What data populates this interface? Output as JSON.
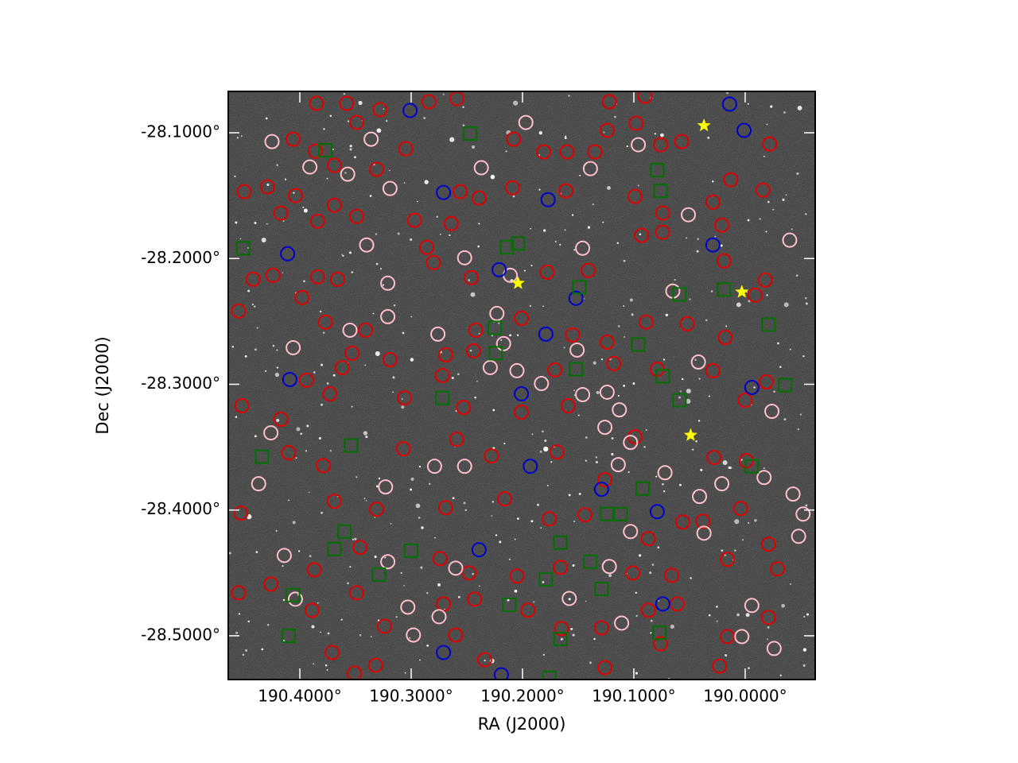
{
  "chart_data": {
    "type": "scatter",
    "xlabel": "RA (J2000)",
    "ylabel": "Dec (J2000)",
    "xlim": [
      190.4643,
      189.9371
    ],
    "ylim": [
      -28.5348,
      -28.0671
    ],
    "xticks": [
      {
        "value": 190.4,
        "label": "190.4000°"
      },
      {
        "value": 190.3,
        "label": "190.3000°"
      },
      {
        "value": 190.2,
        "label": "190.2000°"
      },
      {
        "value": 190.1,
        "label": "190.1000°"
      },
      {
        "value": 190.0,
        "label": "190.0000°"
      }
    ],
    "yticks": [
      {
        "value": -28.1,
        "label": "-28.1000°"
      },
      {
        "value": -28.2,
        "label": "-28.2000°"
      },
      {
        "value": -28.3,
        "label": "-28.3000°"
      },
      {
        "value": -28.4,
        "label": "-28.4000°"
      },
      {
        "value": -28.5,
        "label": "-28.5000°"
      }
    ],
    "series": [
      {
        "marker": "circle",
        "color": "#e00000",
        "x": [
          190.385,
          190.358,
          190.328,
          190.284,
          190.259,
          190.122,
          190.09,
          190.406,
          190.386,
          190.349,
          190.369,
          190.331,
          190.305,
          190.208,
          190.181,
          190.16,
          190.135,
          190.124,
          190.098,
          190.076,
          190.057,
          189.978,
          190.013,
          190.45,
          190.429,
          190.404,
          190.369,
          190.384,
          190.417,
          190.349,
          190.297,
          190.286,
          190.264,
          190.256,
          190.239,
          190.209,
          190.161,
          190.099,
          190.074,
          190.029,
          190.021,
          189.984,
          189.982,
          190.019,
          190.074,
          190.093,
          190.141,
          190.178,
          190.246,
          190.28,
          190.366,
          190.384,
          190.398,
          190.424,
          190.442,
          190.455,
          190.377,
          190.341,
          190.353,
          190.319,
          190.269,
          190.242,
          190.201,
          190.155,
          190.124,
          190.089,
          190.052,
          190.018,
          189.991,
          189.981,
          190.0,
          190.029,
          190.079,
          190.118,
          190.171,
          190.244,
          190.272,
          190.362,
          190.394,
          190.452,
          190.417,
          190.373,
          190.306,
          190.253,
          190.201,
          190.159,
          190.099,
          190.028,
          189.999,
          190.004,
          190.038,
          190.126,
          190.169,
          190.228,
          190.259,
          190.307,
          190.379,
          190.41,
          190.453,
          190.369,
          190.331,
          190.269,
          190.216,
          190.176,
          190.144,
          190.087,
          190.056,
          190.016,
          189.979,
          189.971,
          190.066,
          190.101,
          190.166,
          190.205,
          190.248,
          190.274,
          190.346,
          190.387,
          190.426,
          190.455,
          190.389,
          190.349,
          190.324,
          190.271,
          190.243,
          190.26,
          190.234,
          190.195,
          190.165,
          190.129,
          190.087,
          190.061,
          190.076,
          190.016,
          189.979,
          190.023,
          190.371,
          190.351,
          190.332,
          190.126
        ],
        "y": [
          -28.0766,
          -28.0766,
          -28.0816,
          -28.0753,
          -28.0728,
          -28.0753,
          -28.0709,
          -28.1051,
          -28.1146,
          -28.0918,
          -28.1259,
          -28.1291,
          -28.1127,
          -28.1051,
          -28.1152,
          -28.1152,
          -28.1152,
          -28.0981,
          -28.0924,
          -28.1095,
          -28.107,
          -28.1089,
          -28.1373,
          -28.1468,
          -28.143,
          -28.15,
          -28.1576,
          -28.1703,
          -28.1639,
          -28.1665,
          -28.1696,
          -28.1911,
          -28.1722,
          -28.1468,
          -28.1519,
          -28.1437,
          -28.1462,
          -28.1506,
          -28.1639,
          -28.1551,
          -28.1734,
          -28.1456,
          -28.2171,
          -28.2019,
          -28.1791,
          -28.1816,
          -28.2095,
          -28.2108,
          -28.2152,
          -28.2032,
          -28.2165,
          -28.2146,
          -28.231,
          -28.2133,
          -28.2165,
          -28.2418,
          -28.2506,
          -28.257,
          -28.2753,
          -28.2804,
          -28.2766,
          -28.257,
          -28.2475,
          -28.2608,
          -28.2665,
          -28.2506,
          -28.2519,
          -28.2627,
          -28.2291,
          -28.2981,
          -28.3127,
          -28.2892,
          -28.288,
          -28.2835,
          -28.2886,
          -28.2734,
          -28.293,
          -28.2867,
          -28.2968,
          -28.3171,
          -28.3278,
          -28.3076,
          -28.3108,
          -28.3184,
          -28.3222,
          -28.3171,
          -28.3418,
          -28.3582,
          -28.3608,
          -28.3987,
          -28.4089,
          -28.3759,
          -28.3538,
          -28.357,
          -28.3437,
          -28.3513,
          -28.3646,
          -28.3544,
          -28.4025,
          -28.393,
          -28.3994,
          -28.3981,
          -28.3911,
          -28.407,
          -28.4038,
          -28.4228,
          -28.4095,
          -28.4392,
          -28.4272,
          -28.4468,
          -28.4519,
          -28.45,
          -28.4456,
          -28.4525,
          -28.45,
          -28.4386,
          -28.4297,
          -28.4475,
          -28.4589,
          -28.4658,
          -28.4797,
          -28.4658,
          -28.4924,
          -28.4747,
          -28.4709,
          -28.4994,
          -28.519,
          -28.4797,
          -28.4943,
          -28.4937,
          -28.4797,
          -28.4747,
          -28.5063,
          -28.5006,
          -28.4854,
          -28.5241,
          -28.5133,
          -28.5297,
          -28.5234,
          -28.5253
        ]
      },
      {
        "marker": "circle",
        "color": "#ffc0cb",
        "x": [
          190.425,
          190.391,
          190.336,
          190.357,
          190.319,
          190.197,
          190.237,
          190.139,
          190.096,
          190.051,
          190.146,
          190.252,
          190.34,
          190.321,
          190.211,
          190.223,
          190.276,
          190.406,
          190.217,
          190.183,
          190.113,
          190.126,
          190.103,
          190.114,
          190.041,
          190.021,
          189.983,
          189.957,
          189.948,
          190.003,
          189.974,
          189.976,
          189.96,
          190.065,
          190.042,
          190.321,
          190.355,
          190.437,
          190.426,
          190.414,
          190.404,
          190.321,
          190.303,
          190.298,
          190.275,
          190.26,
          190.279,
          190.323,
          190.252,
          190.229,
          190.205,
          190.103,
          190.037,
          189.994,
          189.952,
          190.151,
          190.146,
          190.124,
          190.158,
          190.122,
          190.111,
          190.072
        ],
        "y": [
          -28.107,
          -28.1272,
          -28.1051,
          -28.1329,
          -28.1443,
          -28.0918,
          -28.1278,
          -28.1285,
          -28.1095,
          -28.1652,
          -28.1918,
          -28.1994,
          -28.1892,
          -28.2196,
          -28.2133,
          -28.2437,
          -28.2601,
          -28.2709,
          -28.2677,
          -28.2994,
          -28.3203,
          -28.3342,
          -28.3462,
          -28.3639,
          -28.3892,
          -28.3791,
          -28.3741,
          -28.3873,
          -28.4032,
          -28.5006,
          -28.5101,
          -28.3215,
          -28.1854,
          -28.2259,
          -28.2823,
          -28.2462,
          -28.257,
          -28.3791,
          -28.3386,
          -28.4361,
          -28.4709,
          -28.4411,
          -28.4772,
          -28.4994,
          -28.4848,
          -28.4462,
          -28.3652,
          -28.3816,
          -28.3652,
          -28.2867,
          -28.2892,
          -28.4171,
          -28.4184,
          -28.4759,
          -28.4209,
          -28.2728,
          -28.3082,
          -28.3063,
          -28.4703,
          -28.4449,
          -28.4899,
          -28.3703
        ]
      },
      {
        "marker": "circle",
        "color": "#0000cc",
        "x": [
          190.301,
          190.014,
          190.001,
          190.271,
          190.177,
          190.029,
          190.411,
          190.221,
          190.152,
          190.179,
          190.409,
          190.201,
          189.994,
          190.193,
          190.129,
          190.079,
          190.239,
          190.074,
          190.271,
          190.219
        ],
        "y": [
          -28.0823,
          -28.0772,
          -28.0981,
          -28.1475,
          -28.1532,
          -28.1892,
          -28.1962,
          -28.2089,
          -28.2316,
          -28.2601,
          -28.2962,
          -28.3076,
          -28.3025,
          -28.3652,
          -28.3835,
          -28.4013,
          -28.4316,
          -28.4747,
          -28.5133,
          -28.531
        ]
      },
      {
        "marker": "square",
        "color": "#007000",
        "x": [
          190.247,
          190.377,
          190.079,
          190.076,
          190.451,
          190.214,
          190.204,
          190.149,
          190.059,
          190.019,
          189.979,
          190.225,
          190.224,
          190.096,
          190.152,
          190.074,
          190.059,
          189.964,
          190.272,
          190.354,
          190.434,
          189.994,
          190.092,
          190.124,
          190.112,
          190.36,
          190.369,
          190.3,
          190.166,
          190.139,
          190.329,
          190.179,
          190.406,
          190.129,
          190.212,
          190.41,
          190.077,
          190.166,
          190.176
        ],
        "y": [
          -28.1006,
          -28.1139,
          -28.1297,
          -28.1462,
          -28.1918,
          -28.1911,
          -28.188,
          -28.2228,
          -28.2285,
          -28.2247,
          -28.2525,
          -28.2551,
          -28.2753,
          -28.2684,
          -28.288,
          -28.2937,
          -28.3127,
          -28.3006,
          -28.3108,
          -28.3487,
          -28.3576,
          -28.3652,
          -28.3829,
          -28.4032,
          -28.4032,
          -28.4171,
          -28.431,
          -28.4323,
          -28.4259,
          -28.4411,
          -28.4513,
          -28.4551,
          -28.4677,
          -28.4627,
          -28.4753,
          -28.5,
          -28.4975,
          -28.5025,
          -28.5335
        ]
      },
      {
        "marker": "star",
        "color": "#ffff00",
        "x": [
          190.037,
          190.204,
          190.003,
          190.049
        ],
        "y": [
          -28.0943,
          -28.2196,
          -28.2266,
          -28.3405
        ]
      }
    ]
  }
}
